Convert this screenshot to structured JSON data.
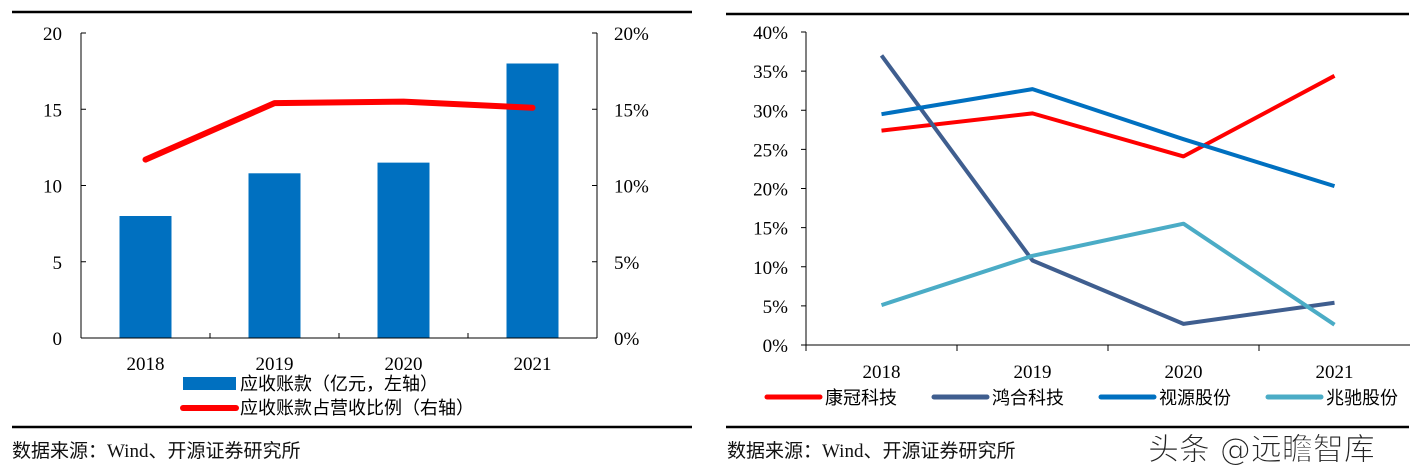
{
  "charts": [
    {
      "source": "数据来源：Wind、开源证券研究所",
      "legend": [
        "应收账款（亿元，左轴）",
        "应收账款占营收比例（右轴）"
      ]
    },
    {
      "source": "数据来源：Wind、开源证券研究所",
      "watermark": "头条 @远瞻智库"
    }
  ],
  "chart_data": [
    {
      "type": "bar+line",
      "categories": [
        "2018",
        "2019",
        "2020",
        "2021"
      ],
      "series": [
        {
          "name": "应收账款（亿元，左轴）",
          "type": "bar",
          "axis": "left",
          "color": "#0070c0",
          "values": [
            8.0,
            10.8,
            11.5,
            18.0
          ]
        },
        {
          "name": "应收账款占营收比例（右轴）",
          "type": "line",
          "axis": "right",
          "color": "#ff0000",
          "values": [
            11.7,
            15.4,
            15.5,
            15.1
          ]
        }
      ],
      "ylim": [
        0,
        20
      ],
      "yticks": [
        "0",
        "5",
        "10",
        "15",
        "20"
      ],
      "y2lim": [
        0,
        20
      ],
      "y2ticks": [
        "0%",
        "5%",
        "10%",
        "15%",
        "20%"
      ],
      "legend_position": "bottom",
      "grid": false
    },
    {
      "type": "line",
      "categories": [
        "2018",
        "2019",
        "2020",
        "2021"
      ],
      "series": [
        {
          "name": "康冠科技",
          "color": "#ff0000",
          "values": [
            27.4,
            29.6,
            24.1,
            34.4
          ]
        },
        {
          "name": "鸿合科技",
          "color": "#3f5e8f",
          "values": [
            37.0,
            10.8,
            2.7,
            5.4
          ]
        },
        {
          "name": "视源股份",
          "color": "#0070c0",
          "values": [
            29.5,
            32.7,
            26.3,
            20.3
          ]
        },
        {
          "name": "兆驰股份",
          "color": "#4bacc6",
          "values": [
            5.1,
            11.4,
            15.5,
            2.6
          ]
        }
      ],
      "ylim": [
        0,
        40
      ],
      "yticks": [
        "0%",
        "5%",
        "10%",
        "15%",
        "20%",
        "25%",
        "30%",
        "35%",
        "40%"
      ],
      "legend_position": "bottom",
      "grid": false
    }
  ]
}
